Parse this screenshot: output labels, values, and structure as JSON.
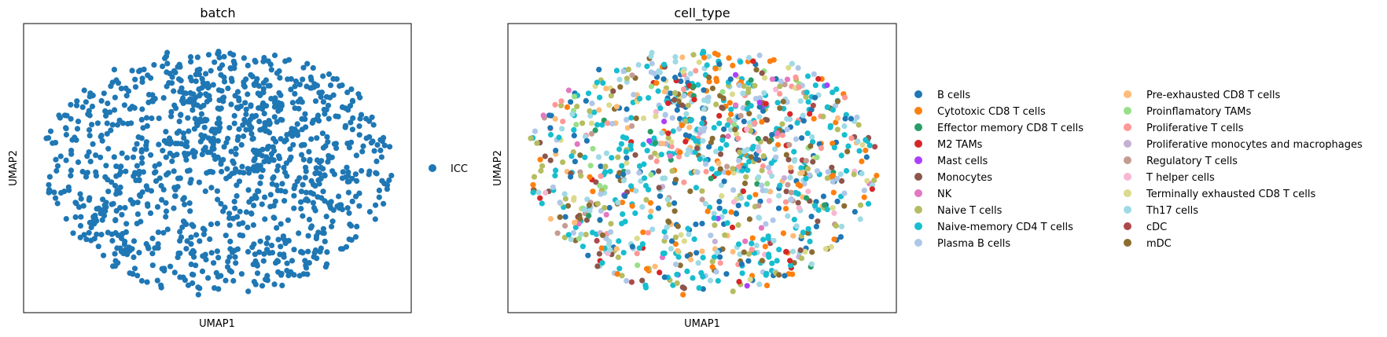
{
  "chart_data": [
    {
      "type": "scatter",
      "title": "batch",
      "xlabel": "UMAP1",
      "ylabel": "UMAP2",
      "xticks": [],
      "yticks": [],
      "grid": false,
      "legend_placement": "right",
      "series": [
        {
          "name": "ICC",
          "color": "#1f77b4"
        }
      ]
    },
    {
      "type": "scatter",
      "title": "cell_type",
      "xlabel": "UMAP1",
      "ylabel": "UMAP2",
      "xticks": [],
      "yticks": [],
      "grid": false,
      "legend_placement": "right",
      "series": [
        {
          "name": "B cells",
          "color": "#1f77b4"
        },
        {
          "name": "Cytotoxic CD8 T cells",
          "color": "#ff7f0e"
        },
        {
          "name": "Effector memory CD8 T cells",
          "color": "#279e68"
        },
        {
          "name": "M2 TAMs",
          "color": "#d62728"
        },
        {
          "name": "Mast cells",
          "color": "#aa40fc"
        },
        {
          "name": "Monocytes",
          "color": "#8c564b"
        },
        {
          "name": "NK",
          "color": "#e377c2"
        },
        {
          "name": "Naive T cells",
          "color": "#b5bd61"
        },
        {
          "name": "Naive-memory CD4 T cells",
          "color": "#17becf"
        },
        {
          "name": "Plasma B cells",
          "color": "#aec7e8"
        },
        {
          "name": "Pre-exhausted CD8 T cells",
          "color": "#ffbb78"
        },
        {
          "name": "Proinflamatory TAMs",
          "color": "#98df8a"
        },
        {
          "name": "Proliferative T cells",
          "color": "#ff9896"
        },
        {
          "name": "Proliferative monocytes and macrophages",
          "color": "#c5b0d5"
        },
        {
          "name": "Regulatory T cells",
          "color": "#c49c94"
        },
        {
          "name": "T helper cells",
          "color": "#f7b6d2"
        },
        {
          "name": "Terminally exhausted CD8 T cells",
          "color": "#dbdb8d"
        },
        {
          "name": "Th17 cells",
          "color": "#9edae5"
        },
        {
          "name": "cDC",
          "color": "#ad494a"
        },
        {
          "name": "mDC",
          "color": "#8c6d31"
        }
      ]
    }
  ]
}
